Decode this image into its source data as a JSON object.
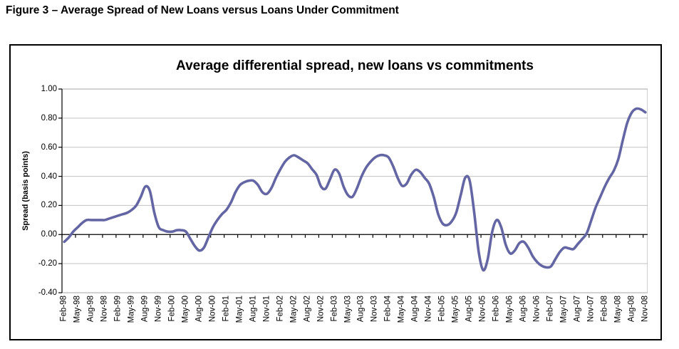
{
  "figure_title": "Figure 3 – Average Spread of New Loans versus Loans Under Commitment",
  "chart_data": {
    "type": "line",
    "title": "Average differential spread, new loans vs commitments",
    "ylabel": "Spread (basis points)",
    "xlabel": "",
    "ylim": [
      -0.4,
      1.0
    ],
    "grid": true,
    "legend": "none",
    "line_color": "#6466A4",
    "gridline_color": "#C3C3C3",
    "plot_border_color": "#A6A6A6",
    "axis_color": "#000000",
    "ytick_labels": [
      "1.00",
      "0.80",
      "0.60",
      "0.40",
      "0.20",
      "0.00",
      "-0.20",
      "-0.40"
    ],
    "xtick_labels": [
      "Feb-98",
      "May-98",
      "Aug-98",
      "Nov-98",
      "Feb-99",
      "May-99",
      "Aug-99",
      "Nov-99",
      "Feb-00",
      "May-00",
      "Aug-00",
      "Nov-00",
      "Feb-01",
      "May-01",
      "Aug-01",
      "Nov-01",
      "Feb-02",
      "May-02",
      "Aug-02",
      "Nov-02",
      "Feb-03",
      "May-03",
      "Aug-03",
      "Nov-03",
      "Feb-04",
      "May-04",
      "Aug-04",
      "Nov-04",
      "Feb-05",
      "May-05",
      "Aug-05",
      "Nov-05",
      "Feb-06",
      "May-06",
      "Aug-06",
      "Nov-06",
      "Feb-07",
      "May-07",
      "Aug-07",
      "Nov-07",
      "Feb-08",
      "May-08",
      "Aug-08",
      "Nov-08"
    ],
    "x": [
      "Feb-98",
      "Mar-98",
      "Apr-98",
      "May-98",
      "Jun-98",
      "Jul-98",
      "Aug-98",
      "Sep-98",
      "Oct-98",
      "Nov-98",
      "Dec-98",
      "Jan-99",
      "Feb-99",
      "Mar-99",
      "Apr-99",
      "May-99",
      "Jun-99",
      "Jul-99",
      "Aug-99",
      "Sep-99",
      "Oct-99",
      "Nov-99",
      "Dec-99",
      "Jan-00",
      "Feb-00",
      "Mar-00",
      "Apr-00",
      "May-00",
      "Jun-00",
      "Jul-00",
      "Aug-00",
      "Sep-00",
      "Oct-00",
      "Nov-00",
      "Dec-00",
      "Jan-01",
      "Feb-01",
      "Mar-01",
      "Apr-01",
      "May-01",
      "Jun-01",
      "Jul-01",
      "Aug-01",
      "Sep-01",
      "Oct-01",
      "Nov-01",
      "Dec-01",
      "Jan-02",
      "Feb-02",
      "Mar-02",
      "Apr-02",
      "May-02",
      "Jun-02",
      "Jul-02",
      "Aug-02",
      "Sep-02",
      "Oct-02",
      "Nov-02",
      "Dec-02",
      "Jan-03",
      "Feb-03",
      "Mar-03",
      "Apr-03",
      "May-03",
      "Jun-03",
      "Jul-03",
      "Aug-03",
      "Sep-03",
      "Oct-03",
      "Nov-03",
      "Dec-03",
      "Jan-04",
      "Feb-04",
      "Mar-04",
      "Apr-04",
      "May-04",
      "Jun-04",
      "Jul-04",
      "Aug-04",
      "Sep-04",
      "Oct-04",
      "Nov-04",
      "Dec-04",
      "Jan-05",
      "Feb-05",
      "Mar-05",
      "Apr-05",
      "May-05",
      "Jun-05",
      "Jul-05",
      "Aug-05",
      "Sep-05",
      "Oct-05",
      "Nov-05",
      "Dec-05",
      "Jan-06",
      "Feb-06",
      "Mar-06",
      "Apr-06",
      "May-06",
      "Jun-06",
      "Jul-06",
      "Aug-06",
      "Sep-06",
      "Oct-06",
      "Nov-06",
      "Dec-06",
      "Jan-07",
      "Feb-07",
      "Mar-07",
      "Apr-07",
      "May-07",
      "Jun-07",
      "Jul-07",
      "Aug-07",
      "Sep-07",
      "Oct-07",
      "Nov-07",
      "Dec-07",
      "Jan-08",
      "Feb-08",
      "Mar-08",
      "Apr-08",
      "May-08",
      "Jun-08",
      "Jul-08",
      "Aug-08",
      "Sep-08",
      "Oct-08",
      "Nov-08"
    ],
    "series": [
      {
        "values": [
          -0.05,
          -0.02,
          0.02,
          0.05,
          0.08,
          0.1,
          0.1,
          0.1,
          0.1,
          0.1,
          0.11,
          0.12,
          0.13,
          0.14,
          0.15,
          0.17,
          0.2,
          0.26,
          0.33,
          0.3,
          0.15,
          0.05,
          0.03,
          0.02,
          0.02,
          0.03,
          0.03,
          0.02,
          -0.03,
          -0.08,
          -0.11,
          -0.09,
          -0.02,
          0.05,
          0.1,
          0.14,
          0.17,
          0.22,
          0.29,
          0.34,
          0.36,
          0.37,
          0.37,
          0.34,
          0.29,
          0.28,
          0.32,
          0.39,
          0.45,
          0.5,
          0.53,
          0.545,
          0.53,
          0.51,
          0.49,
          0.45,
          0.41,
          0.33,
          0.315,
          0.38,
          0.445,
          0.42,
          0.33,
          0.27,
          0.26,
          0.32,
          0.4,
          0.46,
          0.5,
          0.53,
          0.545,
          0.545,
          0.53,
          0.47,
          0.39,
          0.335,
          0.35,
          0.41,
          0.445,
          0.43,
          0.39,
          0.35,
          0.26,
          0.14,
          0.075,
          0.065,
          0.09,
          0.15,
          0.27,
          0.39,
          0.37,
          0.15,
          -0.12,
          -0.245,
          -0.17,
          0.02,
          0.1,
          0.05,
          -0.07,
          -0.13,
          -0.11,
          -0.06,
          -0.05,
          -0.09,
          -0.15,
          -0.19,
          -0.215,
          -0.225,
          -0.22,
          -0.17,
          -0.12,
          -0.09,
          -0.095,
          -0.1,
          -0.065,
          -0.03,
          0.01,
          0.1,
          0.19,
          0.26,
          0.33,
          0.39,
          0.44,
          0.52,
          0.65,
          0.77,
          0.84,
          0.865,
          0.86,
          0.84
        ]
      }
    ]
  }
}
